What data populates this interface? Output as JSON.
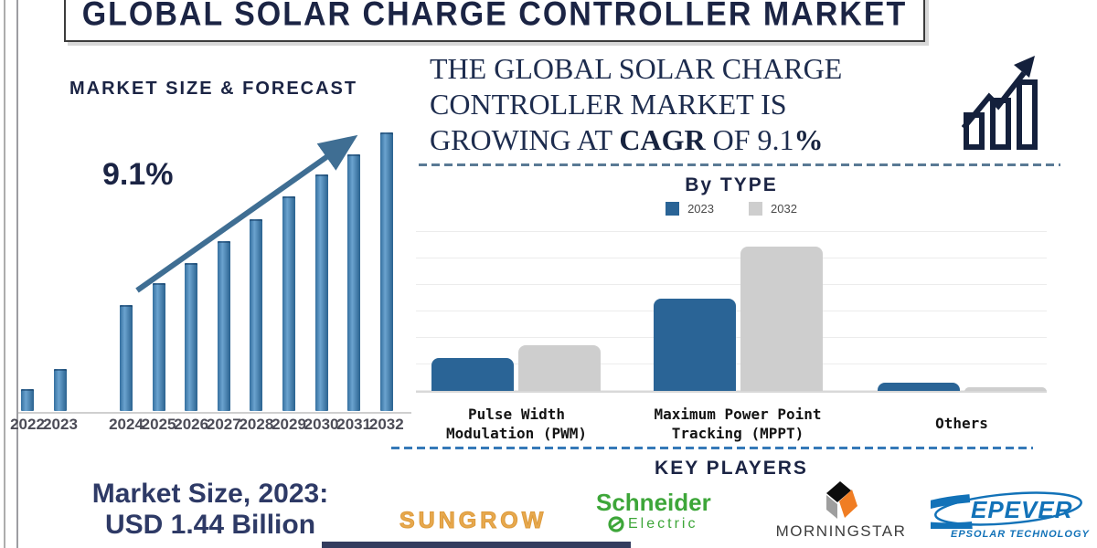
{
  "title": "GLOBAL SOLAR CHARGE CONTROLLER MARKET",
  "colors": {
    "navy": "#1b2444",
    "headline_navy": "#1d2c4e",
    "bar_blue": "#2a6496",
    "bar_gray": "#cecece",
    "arrow_blue": "#3f6e93",
    "dashed_top": "#5a7a95",
    "dashed_bottom": "#3579b8",
    "axis_label_gray": "#4c4c57",
    "market_size_navy": "#2e3a66",
    "sungrow_orange": "#e7a94e",
    "schneider_green": "#3da639",
    "morningstar_text": "#3d3d3d",
    "morningstar_orange": "#f07d23",
    "epever_blue": "#1272b8",
    "bottom_bar_navy": "#333c5e"
  },
  "left_chart": {
    "title": "MARKET SIZE & FORECAST",
    "cagr_label": "9.1%"
  },
  "headline": {
    "line1": "THE GLOBAL SOLAR CHARGE",
    "line2": "CONTROLLER MARKET IS",
    "line3_pre": "GROWING AT ",
    "line3_cagr": "CAGR",
    "line3_mid": " OF 9.1",
    "line3_pct": "%"
  },
  "by_type": {
    "heading": "By TYPE"
  },
  "key_players": {
    "heading": "KEY PLAYERS",
    "players": [
      {
        "name": "SUNGROW"
      },
      {
        "name": "Schneider",
        "sub": "Electric"
      },
      {
        "name": "MORNINGSTAR"
      },
      {
        "name": "EPEVER",
        "sub": "EPSOLAR TECHNOLOGY"
      }
    ]
  },
  "market_size": {
    "line1": "Market Size, 2023:",
    "line2": "USD 1.44 Billion"
  },
  "chart_data": [
    {
      "type": "bar",
      "title": "MARKET SIZE & FORECAST",
      "categories": [
        "2022",
        "2023",
        "2024",
        "2025",
        "2026",
        "2027",
        "2028",
        "2029",
        "2030",
        "2031",
        "2032"
      ],
      "values_relative_pct": [
        8,
        15,
        38,
        46,
        53,
        61,
        69,
        77,
        85,
        92,
        100
      ],
      "ylabel": "",
      "y_axis_labels_shown": false,
      "annotation": {
        "cagr_label": "9.1%",
        "trend": "upward-arrow"
      },
      "known_point": {
        "year": "2023",
        "value": "USD 1.44 Billion"
      }
    },
    {
      "type": "bar",
      "title": "By TYPE",
      "categories": [
        "Pulse Width\nModulation (PWM)",
        "Maximum Power Point\nTracking (MPPT)",
        "Others"
      ],
      "series": [
        {
          "name": "2023",
          "values_relative_pct": [
            23,
            64,
            6
          ]
        },
        {
          "name": "2032",
          "values_relative_pct": [
            32,
            100,
            3
          ]
        }
      ],
      "legend_position": "top",
      "grid": true,
      "ylabel": "",
      "y_axis_labels_shown": false
    }
  ]
}
